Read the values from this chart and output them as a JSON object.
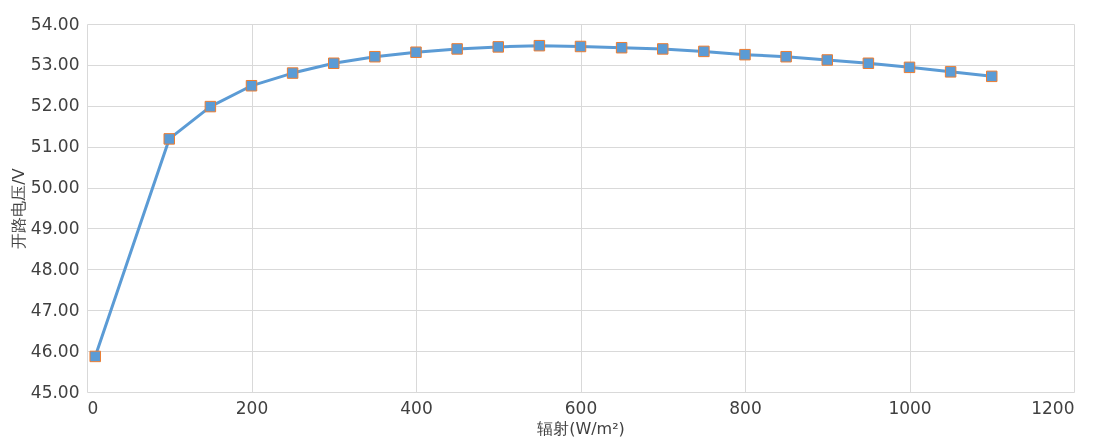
{
  "chart_data": {
    "type": "line",
    "xlabel": "辐射(W/m²)",
    "ylabel": "开路电压/V",
    "x": [
      10,
      100,
      150,
      200,
      250,
      300,
      350,
      400,
      450,
      500,
      550,
      600,
      650,
      700,
      750,
      800,
      850,
      900,
      950,
      1000,
      1050,
      1100
    ],
    "series": [
      {
        "color": "#5b9bd5",
        "values": [
          45.87,
          51.19,
          51.98,
          52.49,
          52.8,
          53.04,
          53.2,
          53.31,
          53.39,
          53.44,
          53.47,
          53.45,
          53.42,
          53.39,
          53.33,
          53.25,
          53.2,
          53.12,
          53.04,
          52.94,
          52.83,
          52.72
        ]
      }
    ],
    "xlim": [
      0,
      1200
    ],
    "xticks": [
      0,
      200,
      400,
      600,
      800,
      1000,
      1200
    ],
    "ylim": [
      45,
      54
    ],
    "yticks": [
      {
        "value": 45,
        "label": "45.00"
      },
      {
        "value": 46,
        "label": "46.00"
      },
      {
        "value": 47,
        "label": "47.00"
      },
      {
        "value": 48,
        "label": "48.00"
      },
      {
        "value": 49,
        "label": "49.00"
      },
      {
        "value": 50,
        "label": "50.00"
      },
      {
        "value": 51,
        "label": "51.00"
      },
      {
        "value": 52,
        "label": "52.00"
      },
      {
        "value": 53,
        "label": "53.00"
      },
      {
        "value": 54,
        "label": "54.00"
      }
    ],
    "grid": true,
    "marker": "square",
    "line_style": "solid"
  }
}
